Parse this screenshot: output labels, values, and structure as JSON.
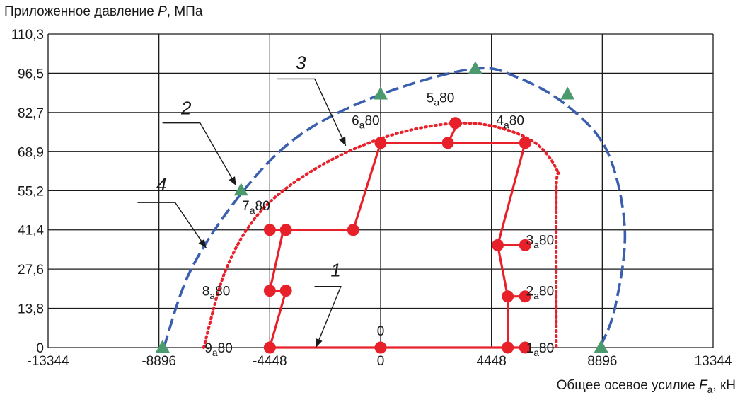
{
  "chart_data": {
    "type": "line",
    "ylabel_text": "Приложенное давление",
    "ylabel_var": "P",
    "ylabel_unit": ", МПа",
    "xlabel_text": "Общее осевое усилие",
    "xlabel_var": "F",
    "xlabel_sub": "a",
    "xlabel_unit": ", кН",
    "xlim": [
      -13344,
      13344
    ],
    "ylim": [
      0,
      110.3
    ],
    "x_ticks": [
      -13344,
      -8896,
      -4448,
      0,
      4448,
      8896,
      13344
    ],
    "x_tick_labels": [
      "-13344",
      "-8896",
      "-4448",
      "0",
      "4448",
      "8896",
      "13344"
    ],
    "y_ticks": [
      0,
      13.8,
      27.6,
      41.4,
      55.2,
      68.9,
      82.7,
      96.5,
      110.3
    ],
    "y_tick_labels": [
      "0",
      "13,8",
      "27,6",
      "41,4",
      "55,2",
      "68,9",
      "82,7",
      "96,5",
      "110,3"
    ],
    "grid": true,
    "colors": {
      "test_path": "#e8202a",
      "limit_dotted": "#e8202a",
      "limit_dashed": "#3a5fae",
      "triangles": "#4a9a6e"
    },
    "series": [
      {
        "key": "test_path",
        "style": "solid-markers",
        "points": [
          [
            -4448,
            0
          ],
          [
            0,
            0
          ],
          [
            5100,
            0
          ],
          [
            5700,
            0
          ],
          [
            5100,
            0
          ],
          [
            5100,
            18
          ],
          [
            5800,
            18
          ],
          [
            5100,
            18
          ],
          [
            4700,
            36
          ],
          [
            5800,
            36
          ],
          [
            4700,
            36
          ],
          [
            5800,
            72
          ],
          [
            2700,
            72
          ],
          [
            3100,
            79
          ],
          [
            2700,
            72
          ],
          [
            0,
            72
          ],
          [
            -1100,
            41.4
          ],
          [
            -3900,
            41.4
          ],
          [
            -4448,
            41.4
          ],
          [
            -3900,
            41.4
          ],
          [
            -4448,
            20
          ],
          [
            -3800,
            20
          ],
          [
            -4448,
            20
          ],
          [
            -3800,
            20
          ],
          [
            -4448,
            0
          ]
        ],
        "markers": [
          [
            -4448,
            0
          ],
          [
            0,
            0
          ],
          [
            5100,
            0
          ],
          [
            5800,
            0
          ],
          [
            5100,
            18
          ],
          [
            5800,
            18
          ],
          [
            4700,
            36
          ],
          [
            5800,
            36
          ],
          [
            5800,
            72
          ],
          [
            2700,
            72
          ],
          [
            3000,
            79
          ],
          [
            0,
            72
          ],
          [
            -1100,
            41.4
          ],
          [
            -3800,
            41.4
          ],
          [
            -4448,
            41.4
          ],
          [
            -4448,
            20
          ],
          [
            -3800,
            20
          ]
        ]
      },
      {
        "key": "limit_dotted",
        "style": "dotted",
        "points": [
          [
            -7100,
            0
          ],
          [
            -6200,
            27.6
          ],
          [
            -4800,
            48
          ],
          [
            -2600,
            63
          ],
          [
            0,
            73.5
          ],
          [
            2500,
            78.5
          ],
          [
            4448,
            78
          ],
          [
            6200,
            72
          ],
          [
            7100,
            62
          ],
          [
            7050,
            55.2
          ],
          [
            7050,
            0
          ]
        ]
      },
      {
        "key": "limit_dashed",
        "style": "dashed",
        "points": [
          [
            -8700,
            0
          ],
          [
            -7600,
            27.6
          ],
          [
            -5500,
            55.2
          ],
          [
            -3200,
            75
          ],
          [
            0,
            89
          ],
          [
            3700,
            98
          ],
          [
            5500,
            95
          ],
          [
            7500,
            85
          ],
          [
            9100,
            68.9
          ],
          [
            9800,
            41.4
          ],
          [
            9400,
            13.8
          ],
          [
            8800,
            0
          ]
        ],
        "markers": [
          [
            -8750,
            0
          ],
          [
            -5600,
            55.2
          ],
          [
            0,
            89
          ],
          [
            3800,
            98
          ],
          [
            7500,
            89
          ],
          [
            8850,
            0
          ]
        ]
      }
    ],
    "annotations": [
      {
        "text": "1",
        "x": -1800,
        "y": 25
      },
      {
        "text": "2",
        "x": -7800,
        "y": 82
      },
      {
        "text": "3",
        "x": -3200,
        "y": 98
      },
      {
        "text": "4",
        "x": -8800,
        "y": 55
      }
    ],
    "point_labels": [
      {
        "num": "1",
        "sub": "a",
        "tail": "80",
        "x": 6400,
        "y": 0
      },
      {
        "num": "2",
        "sub": "a",
        "tail": "80",
        "x": 6400,
        "y": 20
      },
      {
        "num": "3",
        "sub": "a",
        "tail": "80",
        "x": 6400,
        "y": 38
      },
      {
        "num": "4",
        "sub": "a",
        "tail": "80",
        "x": 5200,
        "y": 80
      },
      {
        "num": "5",
        "sub": "a",
        "tail": "80",
        "x": 2400,
        "y": 88
      },
      {
        "num": "6",
        "sub": "a",
        "tail": "80",
        "x": -600,
        "y": 80
      },
      {
        "num": "7",
        "sub": "a",
        "tail": "80",
        "x": -5000,
        "y": 50
      },
      {
        "num": "8",
        "sub": "a",
        "tail": "80",
        "x": -6600,
        "y": 20
      },
      {
        "num": "9",
        "sub": "a",
        "tail": "80",
        "x": -6500,
        "y": 0
      },
      {
        "num": "0",
        "sub": "",
        "tail": "",
        "x": 0,
        "y": 6
      }
    ]
  }
}
